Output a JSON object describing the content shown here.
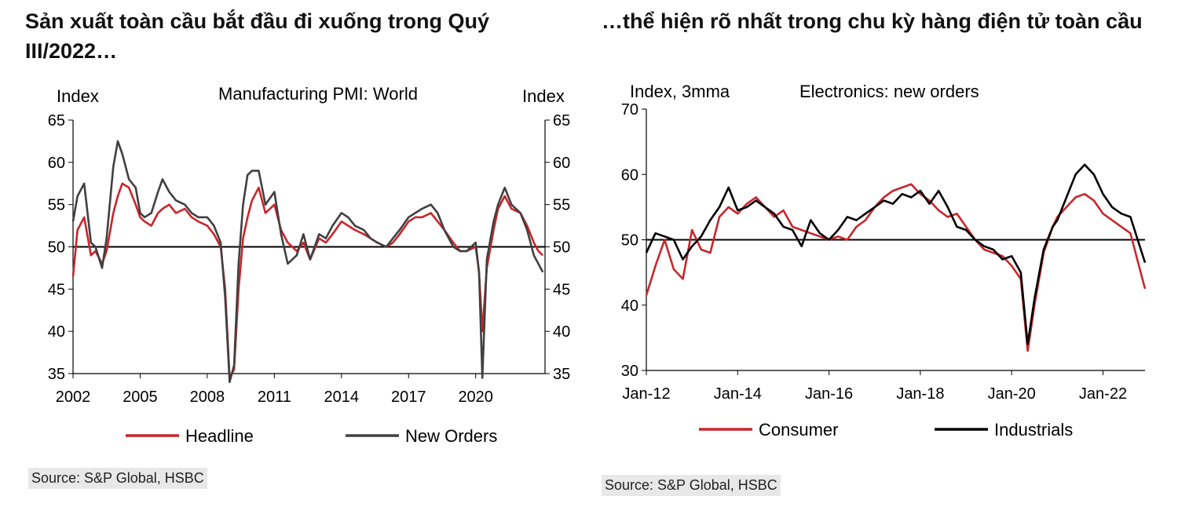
{
  "left": {
    "title": "Sản xuất toàn cầu bắt đầu đi xuống trong Quý III/2022…",
    "source": "Source: S&P Global, HSBC"
  },
  "right": {
    "title": "…thể hiện rõ nhất trong chu kỳ hàng điện tử toàn cầu",
    "source": "Source: S&P Global, HSBC"
  },
  "chart_data": [
    {
      "type": "line",
      "title": "Manufacturing  PMI: World",
      "ylabel_left": "Index",
      "ylabel_right": "Index",
      "ylim": [
        35,
        65
      ],
      "yticks": [
        35,
        40,
        45,
        50,
        55,
        60,
        65
      ],
      "xlim": [
        2002,
        2023.1
      ],
      "xticks": [
        2002,
        2005,
        2008,
        2011,
        2014,
        2017,
        2020
      ],
      "xtick_labels": [
        "2002",
        "2005",
        "2008",
        "2011",
        "2014",
        "2017",
        "2020"
      ],
      "reference_line": 50,
      "colors": {
        "Headline": "#c8262b",
        "New Orders": "#404040"
      },
      "series": [
        {
          "name": "Headline",
          "x": [
            2002.0,
            2002.2,
            2002.5,
            2002.8,
            2003.0,
            2003.3,
            2003.5,
            2003.8,
            2004.0,
            2004.2,
            2004.5,
            2004.8,
            2005.0,
            2005.2,
            2005.5,
            2005.8,
            2006.0,
            2006.3,
            2006.6,
            2007.0,
            2007.3,
            2007.6,
            2008.0,
            2008.3,
            2008.6,
            2008.8,
            2009.0,
            2009.2,
            2009.4,
            2009.6,
            2009.8,
            2010.0,
            2010.3,
            2010.6,
            2011.0,
            2011.3,
            2011.6,
            2012.0,
            2012.3,
            2012.6,
            2013.0,
            2013.3,
            2013.6,
            2014.0,
            2014.3,
            2014.6,
            2015.0,
            2015.3,
            2015.6,
            2016.0,
            2016.3,
            2016.6,
            2017.0,
            2017.3,
            2017.6,
            2018.0,
            2018.3,
            2018.6,
            2019.0,
            2019.3,
            2019.6,
            2020.0,
            2020.15,
            2020.3,
            2020.5,
            2020.8,
            2021.0,
            2021.3,
            2021.6,
            2022.0,
            2022.3,
            2022.6,
            2022.8,
            2023.0
          ],
          "values": [
            46.5,
            52.0,
            53.5,
            49.0,
            49.5,
            48.0,
            49.5,
            54.0,
            56.0,
            57.5,
            57.0,
            55.0,
            53.5,
            53.0,
            52.5,
            54.0,
            54.5,
            55.0,
            54.0,
            54.5,
            53.5,
            53.0,
            52.5,
            51.5,
            50.0,
            45.0,
            34.5,
            35.5,
            45.0,
            51.0,
            53.5,
            55.5,
            57.0,
            54.0,
            55.0,
            52.0,
            50.5,
            49.5,
            50.5,
            48.5,
            51.0,
            50.5,
            51.5,
            53.0,
            52.5,
            52.0,
            51.5,
            51.0,
            50.5,
            50.0,
            50.5,
            51.5,
            53.0,
            53.5,
            53.5,
            54.0,
            53.0,
            52.0,
            50.5,
            49.5,
            49.5,
            50.0,
            47.0,
            40.0,
            47.5,
            52.0,
            54.5,
            56.0,
            54.5,
            54.0,
            52.5,
            50.5,
            49.5,
            49.0
          ]
        },
        {
          "name": "New Orders",
          "x": [
            2002.0,
            2002.2,
            2002.5,
            2002.8,
            2003.0,
            2003.3,
            2003.5,
            2003.8,
            2004.0,
            2004.2,
            2004.5,
            2004.8,
            2005.0,
            2005.2,
            2005.5,
            2005.8,
            2006.0,
            2006.3,
            2006.6,
            2007.0,
            2007.3,
            2007.6,
            2008.0,
            2008.3,
            2008.6,
            2008.8,
            2009.0,
            2009.2,
            2009.4,
            2009.6,
            2009.8,
            2010.0,
            2010.3,
            2010.6,
            2011.0,
            2011.3,
            2011.6,
            2012.0,
            2012.3,
            2012.6,
            2013.0,
            2013.3,
            2013.6,
            2014.0,
            2014.3,
            2014.6,
            2015.0,
            2015.3,
            2015.6,
            2016.0,
            2016.3,
            2016.6,
            2017.0,
            2017.3,
            2017.6,
            2018.0,
            2018.3,
            2018.6,
            2019.0,
            2019.3,
            2019.6,
            2020.0,
            2020.15,
            2020.3,
            2020.5,
            2020.8,
            2021.0,
            2021.3,
            2021.6,
            2022.0,
            2022.3,
            2022.6,
            2022.8,
            2023.0
          ],
          "values": [
            53.0,
            56.0,
            57.5,
            50.5,
            50.0,
            47.5,
            51.0,
            59.5,
            62.5,
            61.0,
            58.0,
            57.0,
            54.0,
            53.5,
            54.0,
            56.5,
            58.0,
            56.5,
            55.5,
            55.0,
            54.0,
            53.5,
            53.5,
            52.5,
            50.5,
            44.0,
            34.0,
            36.0,
            48.0,
            55.0,
            58.5,
            59.0,
            59.0,
            55.0,
            56.5,
            51.5,
            48.0,
            49.0,
            51.5,
            48.5,
            51.5,
            51.0,
            52.5,
            54.0,
            53.5,
            52.5,
            52.0,
            51.0,
            50.5,
            50.0,
            51.0,
            52.0,
            53.5,
            54.0,
            54.5,
            55.0,
            54.0,
            52.0,
            50.0,
            49.5,
            49.5,
            50.5,
            47.0,
            34.5,
            48.5,
            53.0,
            55.0,
            57.0,
            55.0,
            54.0,
            52.0,
            49.0,
            48.0,
            47.0
          ]
        }
      ]
    },
    {
      "type": "line",
      "title": "Electronics:  new orders",
      "ylabel": "Index, 3mma",
      "ylim": [
        30,
        70
      ],
      "yticks": [
        30,
        40,
        50,
        60,
        70
      ],
      "xlim": [
        2012.0,
        2022.92
      ],
      "xticks": [
        2012,
        2014,
        2016,
        2018,
        2020,
        2022
      ],
      "xtick_labels": [
        "Jan-12",
        "Jan-14",
        "Jan-16",
        "Jan-18",
        "Jan-20",
        "Jan-22"
      ],
      "reference_line": 50,
      "colors": {
        "Consumer": "#c8262b",
        "Industrials": "#000000"
      },
      "series": [
        {
          "name": "Consumer",
          "x": [
            2012.0,
            2012.2,
            2012.4,
            2012.6,
            2012.8,
            2013.0,
            2013.2,
            2013.4,
            2013.6,
            2013.8,
            2014.0,
            2014.2,
            2014.4,
            2014.6,
            2014.8,
            2015.0,
            2015.2,
            2015.4,
            2015.6,
            2015.8,
            2016.0,
            2016.2,
            2016.4,
            2016.6,
            2016.8,
            2017.0,
            2017.2,
            2017.4,
            2017.6,
            2017.8,
            2018.0,
            2018.2,
            2018.4,
            2018.6,
            2018.8,
            2019.0,
            2019.2,
            2019.4,
            2019.6,
            2019.8,
            2020.0,
            2020.2,
            2020.35,
            2020.5,
            2020.7,
            2020.9,
            2021.0,
            2021.2,
            2021.4,
            2021.6,
            2021.8,
            2022.0,
            2022.2,
            2022.4,
            2022.6,
            2022.92
          ],
          "values": [
            41.5,
            46.0,
            50.0,
            45.5,
            44.0,
            51.5,
            48.5,
            48.0,
            53.5,
            55.0,
            54.0,
            55.5,
            56.5,
            55.0,
            53.5,
            54.5,
            52.0,
            51.5,
            51.0,
            50.5,
            50.0,
            50.5,
            50.0,
            52.0,
            53.0,
            55.0,
            56.5,
            57.5,
            58.0,
            58.5,
            57.0,
            56.0,
            54.5,
            53.5,
            54.0,
            52.0,
            50.0,
            48.5,
            48.0,
            47.5,
            46.0,
            44.0,
            33.0,
            40.0,
            48.0,
            52.0,
            53.5,
            55.0,
            56.5,
            57.0,
            56.0,
            54.0,
            53.0,
            52.0,
            51.0,
            42.5
          ]
        },
        {
          "name": "Industrials",
          "x": [
            2012.0,
            2012.2,
            2012.4,
            2012.6,
            2012.8,
            2013.0,
            2013.2,
            2013.4,
            2013.6,
            2013.8,
            2014.0,
            2014.2,
            2014.4,
            2014.6,
            2014.8,
            2015.0,
            2015.2,
            2015.4,
            2015.6,
            2015.8,
            2016.0,
            2016.2,
            2016.4,
            2016.6,
            2016.8,
            2017.0,
            2017.2,
            2017.4,
            2017.6,
            2017.8,
            2018.0,
            2018.2,
            2018.4,
            2018.6,
            2018.8,
            2019.0,
            2019.2,
            2019.4,
            2019.6,
            2019.8,
            2020.0,
            2020.2,
            2020.35,
            2020.5,
            2020.7,
            2020.9,
            2021.0,
            2021.2,
            2021.4,
            2021.6,
            2021.8,
            2022.0,
            2022.2,
            2022.4,
            2022.6,
            2022.92
          ],
          "values": [
            48.0,
            51.0,
            50.5,
            50.0,
            47.0,
            49.0,
            50.5,
            53.0,
            55.0,
            58.0,
            54.5,
            55.0,
            56.0,
            55.0,
            54.0,
            52.0,
            51.5,
            49.0,
            53.0,
            51.0,
            50.0,
            51.5,
            53.5,
            53.0,
            54.0,
            55.0,
            56.0,
            55.5,
            57.0,
            56.5,
            57.5,
            55.5,
            57.5,
            55.0,
            52.0,
            51.5,
            50.0,
            49.0,
            48.5,
            47.0,
            47.5,
            45.0,
            34.0,
            41.0,
            48.5,
            52.0,
            53.0,
            56.5,
            60.0,
            61.5,
            60.0,
            57.0,
            55.0,
            54.0,
            53.5,
            46.5
          ]
        }
      ]
    }
  ]
}
